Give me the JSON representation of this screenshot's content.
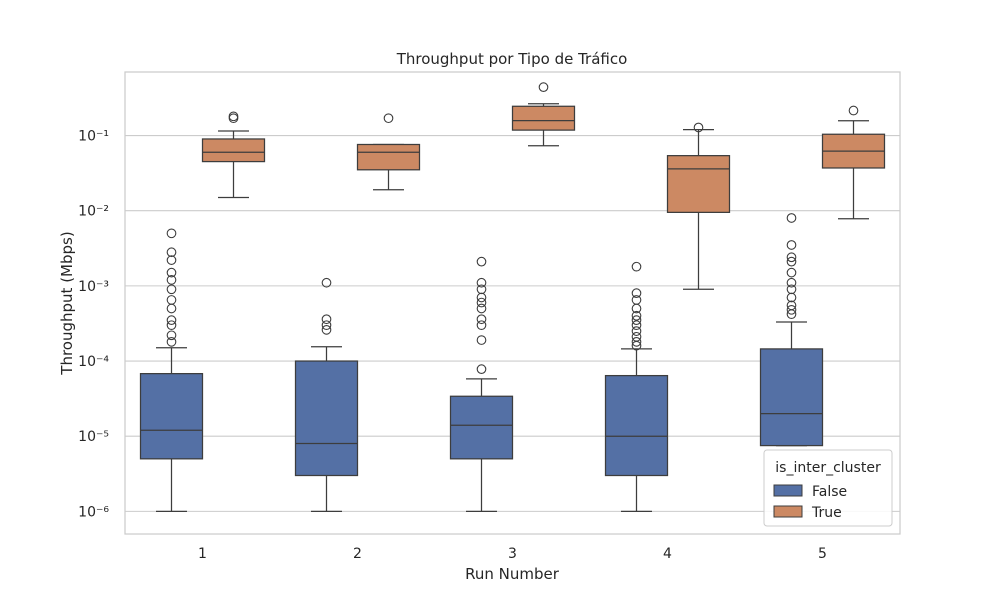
{
  "chart_data": {
    "type": "box",
    "title": "Throughput por Tipo de Tráfico",
    "xlabel": "Run Number",
    "ylabel": "Throughput (Mbps)",
    "yscale": "log",
    "ylim": [
      5e-07,
      0.7
    ],
    "grid": "horizontal",
    "categories": [
      "1",
      "2",
      "3",
      "4",
      "5"
    ],
    "yticks": [
      {
        "value": 1e-06,
        "label": "10⁻⁶"
      },
      {
        "value": 1e-05,
        "label": "10⁻⁵"
      },
      {
        "value": 0.0001,
        "label": "10⁻⁴"
      },
      {
        "value": 0.001,
        "label": "10⁻³"
      },
      {
        "value": 0.01,
        "label": "10⁻²"
      },
      {
        "value": 0.1,
        "label": "10⁻¹"
      }
    ],
    "legend": {
      "title": "is_inter_cluster",
      "placement": "lower-right"
    },
    "series": [
      {
        "name": "False",
        "color": "#5470a5",
        "boxes": [
          {
            "whislo": 1e-06,
            "q1": 5e-06,
            "med": 1.2e-05,
            "q3": 6.8e-05,
            "whishi": 0.00015,
            "fliers": [
              0.005,
              0.0028,
              0.0022,
              0.0015,
              0.0012,
              0.0009,
              0.00065,
              0.0005,
              0.00035,
              0.0003,
              0.00022,
              0.00018
            ]
          },
          {
            "whislo": 1e-06,
            "q1": 3e-06,
            "med": 8e-06,
            "q3": 0.0001,
            "whishi": 0.000155,
            "fliers": [
              0.0011,
              0.00036,
              0.0003,
              0.00026
            ]
          },
          {
            "whislo": 1e-06,
            "q1": 5e-06,
            "med": 1.4e-05,
            "q3": 3.4e-05,
            "whishi": 5.8e-05,
            "fliers": [
              0.0021,
              0.0011,
              0.0009,
              0.0007,
              0.0006,
              0.0005,
              0.00036,
              0.0003,
              0.00019,
              7.8e-05
            ]
          },
          {
            "whislo": 1e-06,
            "q1": 3e-06,
            "med": 1e-05,
            "q3": 6.4e-05,
            "whishi": 0.000145,
            "fliers": [
              0.0018,
              0.0008,
              0.00065,
              0.0005,
              0.0004,
              0.00035,
              0.0003,
              0.00025,
              0.00021,
              0.00018,
              0.00016
            ]
          },
          {
            "whislo": 7.5e-06,
            "q1": 7.5e-06,
            "med": 2e-05,
            "q3": 0.000145,
            "whishi": 0.00033,
            "fliers": [
              0.008,
              0.0035,
              0.0024,
              0.0021,
              0.0015,
              0.0011,
              0.0009,
              0.0007,
              0.00055,
              0.00048,
              0.00042
            ]
          }
        ]
      },
      {
        "name": "True",
        "color": "#cc8963",
        "boxes": [
          {
            "whislo": 0.015,
            "q1": 0.045,
            "med": 0.06,
            "q3": 0.09,
            "whishi": 0.115,
            "fliers": [
              0.18,
              0.17
            ]
          },
          {
            "whislo": 0.019,
            "q1": 0.035,
            "med": 0.06,
            "q3": 0.076,
            "whishi": 0.076,
            "fliers": [
              0.17
            ]
          },
          {
            "whislo": 0.073,
            "q1": 0.118,
            "med": 0.158,
            "q3": 0.245,
            "whishi": 0.265,
            "fliers": [
              0.44
            ]
          },
          {
            "whislo": 0.0009,
            "q1": 0.0095,
            "med": 0.036,
            "q3": 0.054,
            "whishi": 0.12,
            "fliers": [
              0.128
            ]
          },
          {
            "whislo": 0.0078,
            "q1": 0.037,
            "med": 0.062,
            "q3": 0.104,
            "whishi": 0.157,
            "fliers": [
              0.215
            ]
          }
        ]
      }
    ]
  }
}
